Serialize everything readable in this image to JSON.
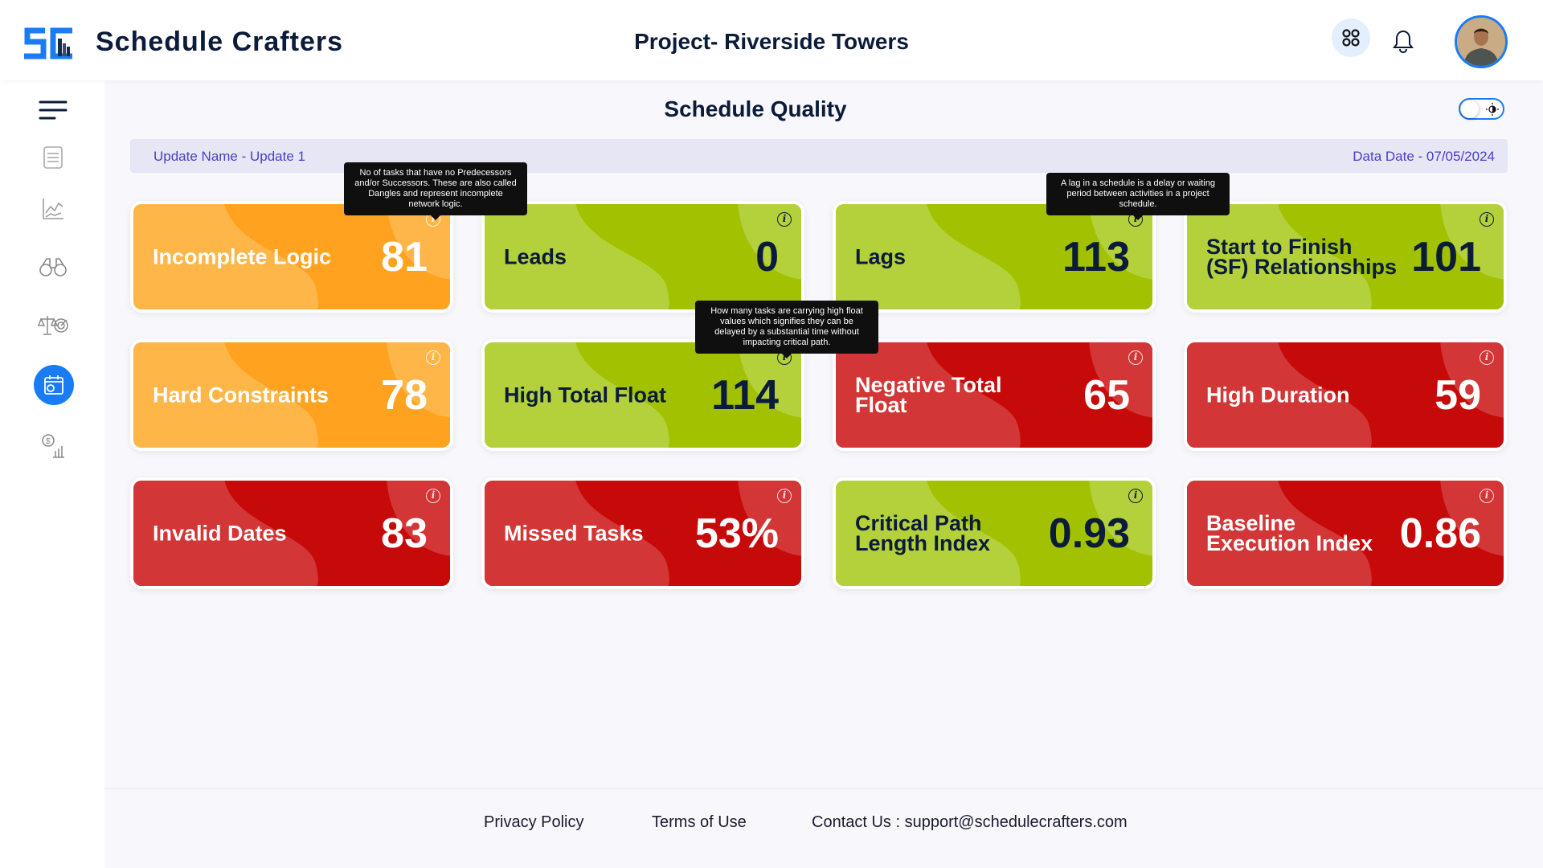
{
  "header": {
    "brand": "Schedule Crafters",
    "logo_text": "SC",
    "project": "Project- Riverside Towers"
  },
  "page": {
    "title": "Schedule Quality",
    "update_name": "Update Name - Update 1",
    "data_date": "Data Date - 07/05/2024"
  },
  "colors": {
    "accent": "#1a7cf5",
    "orange": "#ffa01c",
    "green": "#a0c000",
    "red": "#c40a0a"
  },
  "cards": [
    {
      "label": "Incomplete Logic",
      "value": "81",
      "theme": "orange",
      "tooltip": "No of tasks that have no Predecessors and/or Successors. These are also called Dangles and represent incomplete network logic."
    },
    {
      "label": "Leads",
      "value": "0",
      "theme": "green"
    },
    {
      "label": "Lags",
      "value": "113",
      "theme": "green",
      "tooltip": "A lag in a schedule is a delay or waiting period between activities in a project schedule."
    },
    {
      "label": "Start to Finish (SF) Relationships",
      "value": "101",
      "theme": "green"
    },
    {
      "label": "Hard Constraints",
      "value": "78",
      "theme": "orange"
    },
    {
      "label": "High Total Float",
      "value": "114",
      "theme": "green",
      "tooltip": "How many tasks are carrying high float values which signifies they can be delayed by a substantial time without impacting critical path."
    },
    {
      "label": "Negative Total Float",
      "value": "65",
      "theme": "red"
    },
    {
      "label": "High Duration",
      "value": "59",
      "theme": "red"
    },
    {
      "label": "Invalid Dates",
      "value": "83",
      "theme": "red"
    },
    {
      "label": "Missed Tasks",
      "value": "53%",
      "theme": "red"
    },
    {
      "label": "Critical Path Length Index",
      "value": "0.93",
      "theme": "green"
    },
    {
      "label": "Baseline Execution Index",
      "value": "0.86",
      "theme": "red"
    }
  ],
  "footer": {
    "privacy": "Privacy Policy",
    "terms": "Terms of Use",
    "contact": "Contact Us : support@schedulecrafters.com"
  }
}
